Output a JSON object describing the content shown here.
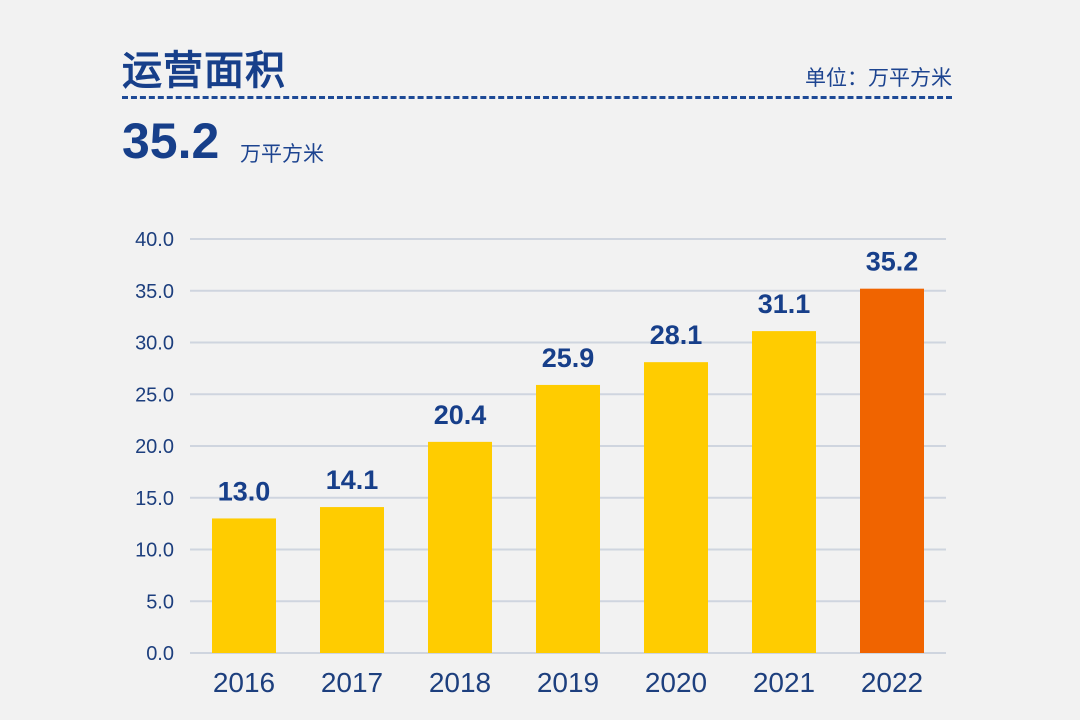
{
  "header": {
    "title": "运营面积",
    "unit_label": "单位：万平方米"
  },
  "highlight": {
    "value": "35.2",
    "unit": "万平方米"
  },
  "colors": {
    "bar_default": "#ffcc00",
    "bar_highlight": "#f06400",
    "text_dark_blue": "#173f8a",
    "grid": "#cfd5df"
  },
  "chart_data": {
    "type": "bar",
    "title": "运营面积",
    "xlabel": "",
    "ylabel": "万平方米",
    "categories": [
      "2016",
      "2017",
      "2018",
      "2019",
      "2020",
      "2021",
      "2022"
    ],
    "values": [
      13.0,
      14.1,
      20.4,
      25.9,
      28.1,
      31.1,
      35.2
    ],
    "value_labels": [
      "13.0",
      "14.1",
      "20.4",
      "25.9",
      "28.1",
      "31.1",
      "35.2"
    ],
    "highlight_index": 6,
    "ylim": [
      0,
      40
    ],
    "yticks": [
      0,
      5,
      10,
      15,
      20,
      25,
      30,
      35,
      40
    ],
    "ytick_labels": [
      "0.0",
      "5.0",
      "10.0",
      "15.0",
      "20.0",
      "25.0",
      "30.0",
      "35.0",
      "40.0"
    ],
    "grid": true,
    "legend": "none"
  }
}
